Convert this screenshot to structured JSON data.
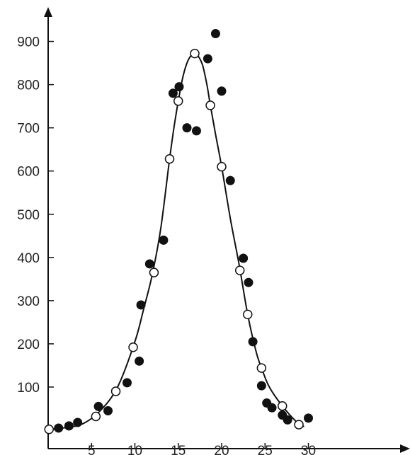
{
  "chart_data": {
    "type": "scatter",
    "title": "",
    "xlabel": "",
    "ylabel": "",
    "xlim": [
      0,
      41
    ],
    "ylim": [
      0,
      970
    ],
    "x_ticks": [
      5,
      10,
      15,
      20,
      25,
      30
    ],
    "y_ticks": [
      100,
      200,
      300,
      400,
      500,
      600,
      700,
      800,
      900
    ],
    "grid": false,
    "legend": "none",
    "series": [
      {
        "marker": "filled-circle",
        "color": "#111111",
        "points": [
          [
            1.2,
            5
          ],
          [
            2.4,
            10
          ],
          [
            3.4,
            18
          ],
          [
            5.8,
            55
          ],
          [
            6.9,
            45
          ],
          [
            9.1,
            110
          ],
          [
            10.5,
            160
          ],
          [
            10.7,
            290
          ],
          [
            11.7,
            385
          ],
          [
            13.3,
            440
          ],
          [
            14.4,
            780
          ],
          [
            15.1,
            795
          ],
          [
            16.0,
            700
          ],
          [
            17.1,
            693
          ],
          [
            18.4,
            860
          ],
          [
            19.3,
            918
          ],
          [
            20.0,
            785
          ],
          [
            21.0,
            578
          ],
          [
            22.5,
            398
          ],
          [
            23.1,
            342
          ],
          [
            23.6,
            205
          ],
          [
            24.6,
            103
          ],
          [
            25.2,
            63
          ],
          [
            25.8,
            52
          ],
          [
            27.0,
            35
          ],
          [
            27.6,
            24
          ],
          [
            30.0,
            28
          ]
        ]
      },
      {
        "marker": "open-circle",
        "color": "#111111",
        "points": [
          [
            0.1,
            2
          ],
          [
            5.5,
            32
          ],
          [
            7.8,
            90
          ],
          [
            9.8,
            192
          ],
          [
            12.2,
            365
          ],
          [
            14.0,
            628
          ],
          [
            15.0,
            762
          ],
          [
            16.9,
            872
          ],
          [
            18.7,
            752
          ],
          [
            20.0,
            610
          ],
          [
            22.1,
            370
          ],
          [
            23.0,
            268
          ],
          [
            24.6,
            144
          ],
          [
            27.0,
            56
          ],
          [
            28.9,
            13
          ]
        ]
      }
    ],
    "curve": {
      "type": "fitted-bell",
      "color": "#111111",
      "points": [
        [
          0.1,
          2
        ],
        [
          2,
          6
        ],
        [
          4,
          15
        ],
        [
          6,
          45
        ],
        [
          8,
          100
        ],
        [
          10,
          205
        ],
        [
          11,
          280
        ],
        [
          12,
          360
        ],
        [
          13,
          470
        ],
        [
          14,
          628
        ],
        [
          14.5,
          700
        ],
        [
          15,
          762
        ],
        [
          15.5,
          815
        ],
        [
          16,
          850
        ],
        [
          16.5,
          868
        ],
        [
          16.9,
          872
        ],
        [
          17.3,
          866
        ],
        [
          17.8,
          845
        ],
        [
          18.3,
          800
        ],
        [
          18.7,
          752
        ],
        [
          19.3,
          685
        ],
        [
          20,
          610
        ],
        [
          21,
          490
        ],
        [
          22,
          385
        ],
        [
          23,
          268
        ],
        [
          24,
          180
        ],
        [
          24.6,
          144
        ],
        [
          25.5,
          100
        ],
        [
          27,
          56
        ],
        [
          28.5,
          22
        ],
        [
          29.5,
          8
        ]
      ]
    }
  }
}
